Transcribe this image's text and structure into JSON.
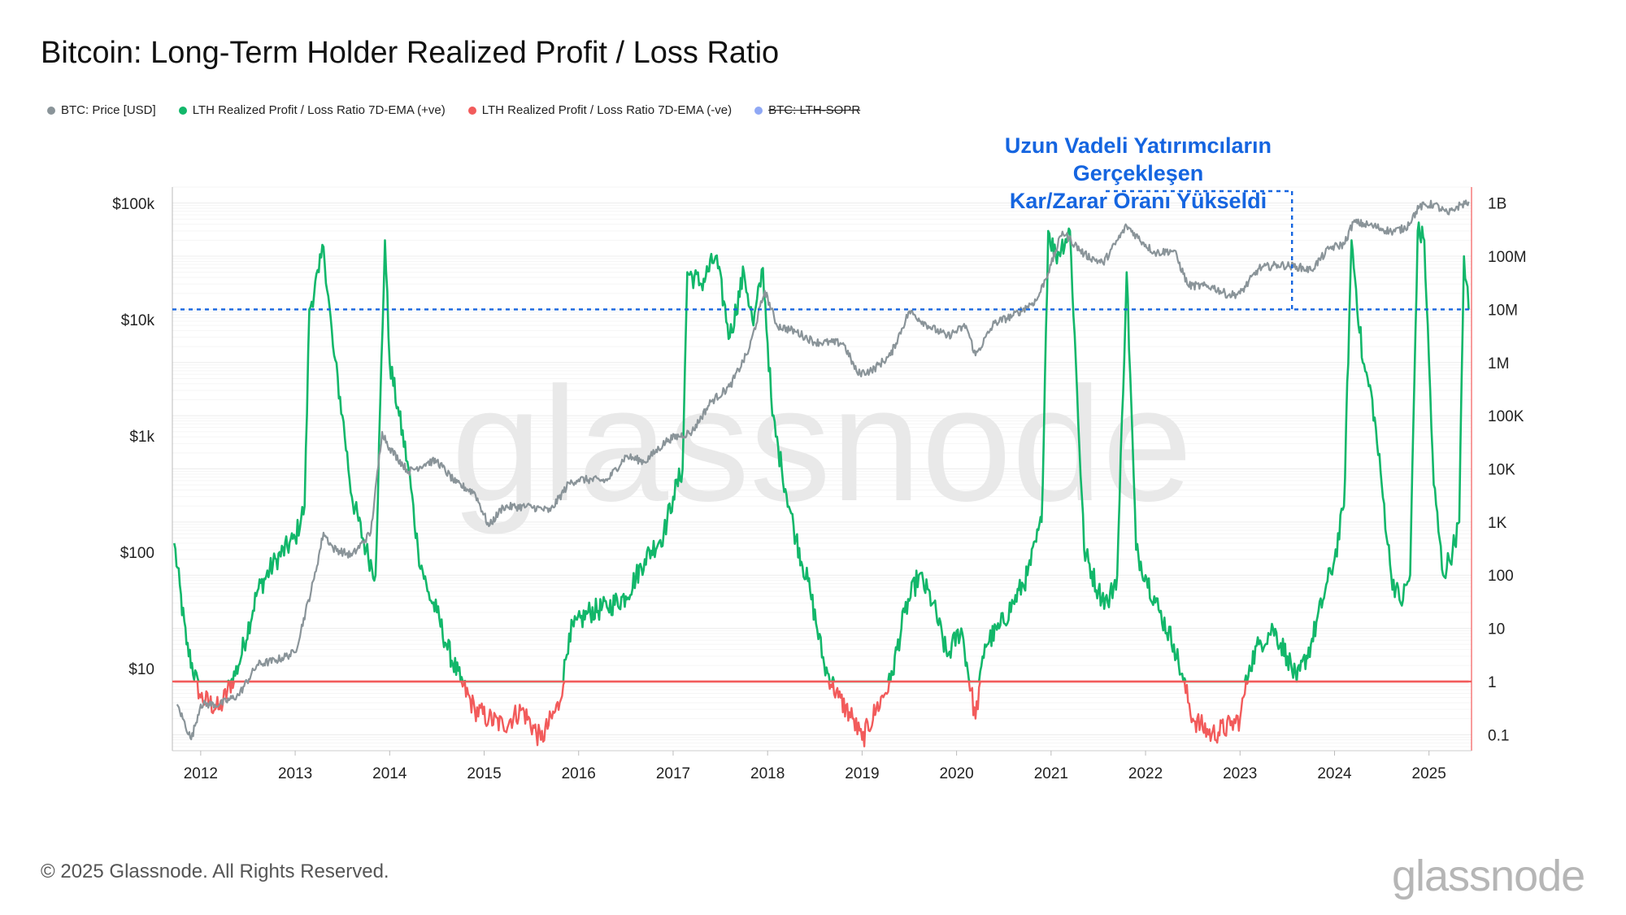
{
  "title": "Bitcoin: Long-Term Holder Realized Profit / Loss Ratio",
  "legend": [
    {
      "label": "BTC: Price [USD]",
      "color": "#8a9499",
      "enabled": true
    },
    {
      "label": "LTH Realized Profit / Loss Ratio 7D-EMA (+ve)",
      "color": "#12b76a",
      "enabled": true
    },
    {
      "label": "LTH Realized Profit / Loss Ratio 7D-EMA (-ve)",
      "color": "#f25b5b",
      "enabled": true
    },
    {
      "label": "BTC: LTH-SOPR",
      "color": "#8fa8f5",
      "enabled": false
    }
  ],
  "annotation": {
    "line1": "Uzun Vadeli Yatırımcıların Gerçekleşen",
    "line2": "Kar/Zarar Oranı Yükseldi",
    "color": "#1565e0"
  },
  "footer": "© 2025 Glassnode. All Rights Reserved.",
  "watermark": "glassnode",
  "logo": "glassnode",
  "chart_data": {
    "type": "line",
    "x_range": [
      2011.7,
      2025.45
    ],
    "x_ticks": [
      "2012",
      "2013",
      "2014",
      "2015",
      "2016",
      "2017",
      "2018",
      "2019",
      "2020",
      "2021",
      "2022",
      "2023",
      "2024",
      "2025"
    ],
    "y_left": {
      "scale": "log",
      "range": [
        2,
        140000
      ],
      "ticks": [
        10,
        100,
        1000,
        10000,
        100000
      ],
      "tick_labels": [
        "$10",
        "$100",
        "$1k",
        "$10k",
        "$100k"
      ]
    },
    "y_right": {
      "scale": "log",
      "range": [
        0.05,
        2000000000
      ],
      "ticks": [
        0.1,
        1,
        10,
        100,
        1000,
        10000,
        100000,
        1000000,
        10000000,
        100000000,
        1000000000
      ],
      "tick_labels": [
        "0.1",
        "1",
        "10",
        "100",
        "1K",
        "10K",
        "100K",
        "1M",
        "10M",
        "100M",
        "1B"
      ]
    },
    "reference_lines": {
      "ratio_one": 1,
      "horizontal_dotted": 10000000,
      "vertical_dotted_year": 2023.55
    },
    "series": [
      {
        "name": "BTC: Price [USD]",
        "axis": "left",
        "color": "#8a9499",
        "points": [
          [
            2011.75,
            5
          ],
          [
            2011.9,
            2.5
          ],
          [
            2012.0,
            5
          ],
          [
            2012.2,
            5
          ],
          [
            2012.4,
            6
          ],
          [
            2012.6,
            11
          ],
          [
            2012.8,
            12
          ],
          [
            2013.0,
            14
          ],
          [
            2013.2,
            60
          ],
          [
            2013.3,
            150
          ],
          [
            2013.4,
            110
          ],
          [
            2013.6,
            95
          ],
          [
            2013.8,
            150
          ],
          [
            2013.92,
            1100
          ],
          [
            2014.0,
            800
          ],
          [
            2014.2,
            500
          ],
          [
            2014.4,
            600
          ],
          [
            2014.5,
            620
          ],
          [
            2014.7,
            400
          ],
          [
            2014.9,
            330
          ],
          [
            2015.05,
            170
          ],
          [
            2015.2,
            250
          ],
          [
            2015.5,
            250
          ],
          [
            2015.7,
            230
          ],
          [
            2015.9,
            400
          ],
          [
            2016.0,
            430
          ],
          [
            2016.3,
            420
          ],
          [
            2016.5,
            680
          ],
          [
            2016.7,
            610
          ],
          [
            2016.95,
            950
          ],
          [
            2017.2,
            1100
          ],
          [
            2017.4,
            2000
          ],
          [
            2017.6,
            2700
          ],
          [
            2017.8,
            5500
          ],
          [
            2017.97,
            18000
          ],
          [
            2018.1,
            9000
          ],
          [
            2018.3,
            8000
          ],
          [
            2018.5,
            6500
          ],
          [
            2018.8,
            6400
          ],
          [
            2018.95,
            3500
          ],
          [
            2019.1,
            3700
          ],
          [
            2019.3,
            5000
          ],
          [
            2019.5,
            12000
          ],
          [
            2019.7,
            9000
          ],
          [
            2019.9,
            7300
          ],
          [
            2020.1,
            9000
          ],
          [
            2020.2,
            5000
          ],
          [
            2020.4,
            9500
          ],
          [
            2020.6,
            11000
          ],
          [
            2020.85,
            15000
          ],
          [
            2021.0,
            30000
          ],
          [
            2021.12,
            58000
          ],
          [
            2021.35,
            37000
          ],
          [
            2021.55,
            31000
          ],
          [
            2021.8,
            65000
          ],
          [
            2021.97,
            47000
          ],
          [
            2022.1,
            38000
          ],
          [
            2022.3,
            40000
          ],
          [
            2022.45,
            20000
          ],
          [
            2022.7,
            19500
          ],
          [
            2022.88,
            16500
          ],
          [
            2023.0,
            17000
          ],
          [
            2023.2,
            28000
          ],
          [
            2023.4,
            30000
          ],
          [
            2023.6,
            29000
          ],
          [
            2023.75,
            27000
          ],
          [
            2023.95,
            42000
          ],
          [
            2024.1,
            45000
          ],
          [
            2024.2,
            70000
          ],
          [
            2024.4,
            65000
          ],
          [
            2024.6,
            58000
          ],
          [
            2024.75,
            62000
          ],
          [
            2024.9,
            95000
          ],
          [
            2025.05,
            100000
          ],
          [
            2025.2,
            82000
          ],
          [
            2025.3,
            95000
          ],
          [
            2025.42,
            105000
          ]
        ]
      },
      {
        "name": "LTH Realized Profit / Loss Ratio 7D-EMA",
        "axis": "right",
        "color_positive": "#12b76a",
        "color_negative": "#f25b5b",
        "points": [
          [
            2011.72,
            400
          ],
          [
            2011.85,
            5
          ],
          [
            2012.0,
            0.5
          ],
          [
            2012.2,
            0.3
          ],
          [
            2012.4,
            2
          ],
          [
            2012.6,
            50
          ],
          [
            2012.8,
            200
          ],
          [
            2013.0,
            500
          ],
          [
            2013.1,
            2000
          ],
          [
            2013.15,
            10000000
          ],
          [
            2013.25,
            50000000
          ],
          [
            2013.3,
            150000000
          ],
          [
            2013.4,
            2000000
          ],
          [
            2013.5,
            100000
          ],
          [
            2013.6,
            3000
          ],
          [
            2013.75,
            300
          ],
          [
            2013.85,
            100
          ],
          [
            2013.95,
            200000000
          ],
          [
            2014.0,
            1000000
          ],
          [
            2014.1,
            100000
          ],
          [
            2014.2,
            10000
          ],
          [
            2014.3,
            300
          ],
          [
            2014.4,
            50
          ],
          [
            2014.5,
            20
          ],
          [
            2014.6,
            5
          ],
          [
            2014.75,
            1
          ],
          [
            2014.9,
            0.3
          ],
          [
            2015.05,
            0.2
          ],
          [
            2015.2,
            0.15
          ],
          [
            2015.4,
            0.3
          ],
          [
            2015.6,
            0.08
          ],
          [
            2015.8,
            0.4
          ],
          [
            2015.9,
            8
          ],
          [
            2016.1,
            20
          ],
          [
            2016.3,
            25
          ],
          [
            2016.5,
            40
          ],
          [
            2016.7,
            200
          ],
          [
            2016.9,
            600
          ],
          [
            2017.0,
            3000
          ],
          [
            2017.1,
            10000
          ],
          [
            2017.15,
            50000000
          ],
          [
            2017.3,
            30000000
          ],
          [
            2017.45,
            100000000
          ],
          [
            2017.6,
            3000000
          ],
          [
            2017.75,
            50000000
          ],
          [
            2017.85,
            5000000
          ],
          [
            2017.95,
            60000000
          ],
          [
            2018.05,
            100000
          ],
          [
            2018.15,
            10000
          ],
          [
            2018.3,
            500
          ],
          [
            2018.45,
            50
          ],
          [
            2018.6,
            2
          ],
          [
            2018.75,
            0.5
          ],
          [
            2018.9,
            0.2
          ],
          [
            2019.0,
            0.08
          ],
          [
            2019.15,
            0.3
          ],
          [
            2019.3,
            1
          ],
          [
            2019.45,
            20
          ],
          [
            2019.6,
            100
          ],
          [
            2019.75,
            30
          ],
          [
            2019.9,
            3
          ],
          [
            2020.05,
            10
          ],
          [
            2020.2,
            0.2
          ],
          [
            2020.3,
            5
          ],
          [
            2020.45,
            10
          ],
          [
            2020.6,
            30
          ],
          [
            2020.75,
            100
          ],
          [
            2020.9,
            1000
          ],
          [
            2020.97,
            300000000
          ],
          [
            2021.05,
            100000000
          ],
          [
            2021.2,
            300000000
          ],
          [
            2021.35,
            300
          ],
          [
            2021.5,
            50
          ],
          [
            2021.6,
            30
          ],
          [
            2021.7,
            100
          ],
          [
            2021.8,
            50000000
          ],
          [
            2021.9,
            300
          ],
          [
            2022.0,
            100
          ],
          [
            2022.15,
            20
          ],
          [
            2022.3,
            5
          ],
          [
            2022.4,
            1
          ],
          [
            2022.5,
            0.2
          ],
          [
            2022.7,
            0.1
          ],
          [
            2022.9,
            0.15
          ],
          [
            2023.0,
            0.2
          ],
          [
            2023.1,
            2
          ],
          [
            2023.2,
            5
          ],
          [
            2023.35,
            10
          ],
          [
            2023.5,
            3
          ],
          [
            2023.6,
            1
          ],
          [
            2023.75,
            5
          ],
          [
            2023.9,
            50
          ],
          [
            2024.0,
            200
          ],
          [
            2024.1,
            2000
          ],
          [
            2024.18,
            200000000
          ],
          [
            2024.3,
            1000000
          ],
          [
            2024.4,
            200000
          ],
          [
            2024.5,
            5000
          ],
          [
            2024.6,
            100
          ],
          [
            2024.7,
            30
          ],
          [
            2024.8,
            100
          ],
          [
            2024.88,
            300000000
          ],
          [
            2024.95,
            200000000
          ],
          [
            2025.05,
            5000
          ],
          [
            2025.15,
            100
          ],
          [
            2025.25,
            300
          ],
          [
            2025.32,
            1000
          ],
          [
            2025.37,
            100000000
          ],
          [
            2025.42,
            10000000
          ]
        ]
      }
    ]
  }
}
